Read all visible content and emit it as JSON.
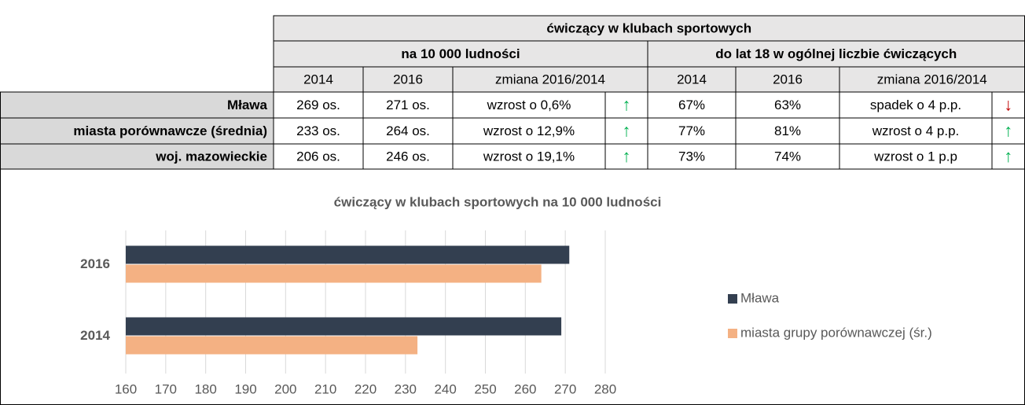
{
  "table": {
    "title": "ćwiczący w klubach sportowych",
    "groups": [
      "na 10 000 ludności",
      "do lat 18 w ogólnej liczbie ćwiczących"
    ],
    "columns": [
      "2014",
      "2016",
      "zmiana 2016/2014",
      "2014",
      "2016",
      "zmiana 2016/2014"
    ],
    "arrow_colors": {
      "↑": "#00b050",
      "↓": "#c00000"
    },
    "rows": [
      {
        "label": "Mława",
        "cells": [
          "269 os.",
          "271 os.",
          "wzrost o 0,6%",
          "↑",
          "67%",
          "63%",
          "spadek o 4 p.p.",
          "↓"
        ]
      },
      {
        "label": "miasta porównawcze (średnia)",
        "cells": [
          "233 os.",
          "264 os.",
          "wzrost o 12,9%",
          "↑",
          "77%",
          "81%",
          "wzrost o 4 p.p.",
          "↑"
        ]
      },
      {
        "label": "woj. mazowieckie",
        "cells": [
          "206 os.",
          "246 os.",
          "wzrost o 19,1%",
          "↑",
          "73%",
          "74%",
          "wzrost o 1 p.p",
          "↑"
        ]
      }
    ]
  },
  "chart_data": {
    "type": "hbar",
    "title": "ćwiczący w klubach sportowych na 10 000 ludności",
    "categories": [
      "2016",
      "2014"
    ],
    "series": [
      {
        "name": "Mława",
        "color": "#333f50",
        "values": [
          271,
          269
        ]
      },
      {
        "name": "miasta grupy porównawczej (śr.)",
        "color": "#f4b183",
        "values": [
          264,
          233
        ]
      }
    ],
    "xlim": [
      160,
      280
    ],
    "xticks": [
      160,
      170,
      180,
      190,
      200,
      210,
      220,
      230,
      240,
      250,
      260,
      270,
      280
    ],
    "grid": true,
    "legend": "right"
  }
}
